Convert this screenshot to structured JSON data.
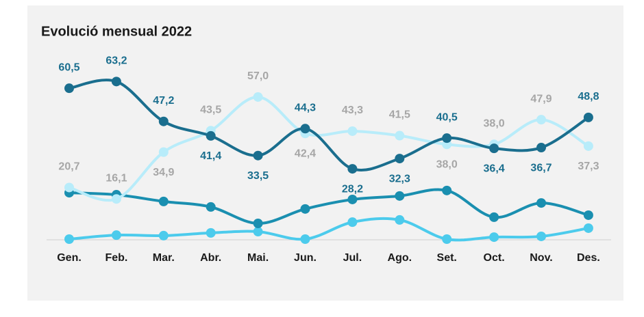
{
  "chart_data": {
    "type": "line",
    "title": "Evolució mensual 2022",
    "categories": [
      "Gen.",
      "Feb.",
      "Mar.",
      "Abr.",
      "Mai.",
      "Jun.",
      "Jul.",
      "Ago.",
      "Set.",
      "Oct.",
      "Nov.",
      "Des."
    ],
    "ylim": [
      0,
      60
    ],
    "smooth": true,
    "series": [
      {
        "color": "#1a6e8e",
        "label_color": "#1a6e8e",
        "values": [
          60.5,
          63.2,
          47.2,
          41.4,
          33.5,
          44.3,
          28.2,
          32.3,
          40.5,
          36.4,
          36.7,
          48.8
        ],
        "value_labels": [
          "60,5",
          "63,2",
          "47,2",
          "41,4",
          "33,5",
          "44,3",
          "28,2",
          "32,3",
          "40,5",
          "36,4",
          "36,7",
          "48,8"
        ]
      },
      {
        "color": "#b8ecfa",
        "label_color": "#a6a6a6",
        "values": [
          20.7,
          16.1,
          34.9,
          43.5,
          57.0,
          42.4,
          43.3,
          41.5,
          38.0,
          38.0,
          47.9,
          37.3
        ],
        "value_labels": [
          "20,7",
          "16,1",
          "34,9",
          "43,5",
          "57,0",
          "42,4",
          "43,3",
          "41,5",
          "38,0",
          "38,0",
          "47,9",
          "37,3"
        ]
      },
      {
        "color": "#1a8fb0",
        "values": [
          18.6,
          17.8,
          15.1,
          12.9,
          6.3,
          12.1,
          15.9,
          17.3,
          19.5,
          8.8,
          14.5,
          9.6
        ]
      },
      {
        "color": "#4ccbec",
        "values": [
          0,
          1.6,
          1.4,
          2.5,
          3.0,
          0,
          6.8,
          7.7,
          0,
          0.8,
          1.1,
          4.4
        ]
      }
    ]
  }
}
